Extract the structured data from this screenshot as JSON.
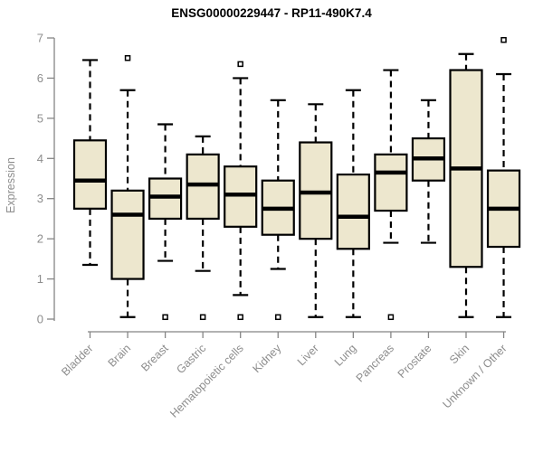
{
  "chart_data": {
    "type": "boxplot",
    "title": "ENSG00000229447 - RP11-490K7.4",
    "ylabel": "Expression",
    "xlabel": "",
    "ylim": [
      0,
      7
    ],
    "yticks": [
      0,
      1,
      2,
      3,
      4,
      5,
      6,
      7
    ],
    "grid": false,
    "legend": "none",
    "colors": {
      "box_fill": "#EDE7CE",
      "box_stroke": "#000000",
      "median": "#000000",
      "whisker": "#000000",
      "axis": "#858585",
      "tick_text": "#8D8D8D",
      "title_text": "#000000",
      "background": "#FFFFFF"
    },
    "categories": [
      "Bladder",
      "Brain",
      "Breast",
      "Gastric",
      "Hematopoietic cells",
      "Kidney",
      "Liver",
      "Lung",
      "Pancreas",
      "Prostate",
      "Skin",
      "Unknown / Other"
    ],
    "series": [
      {
        "category": "Bladder",
        "whisker_low": 1.35,
        "q1": 2.75,
        "median": 3.45,
        "q3": 4.45,
        "whisker_high": 6.45,
        "outliers": []
      },
      {
        "category": "Brain",
        "whisker_low": 0.05,
        "q1": 1.0,
        "median": 2.6,
        "q3": 3.2,
        "whisker_high": 5.7,
        "outliers": [
          6.5
        ]
      },
      {
        "category": "Breast",
        "whisker_low": 1.45,
        "q1": 2.5,
        "median": 3.05,
        "q3": 3.5,
        "whisker_high": 4.85,
        "outliers": [
          0.05
        ]
      },
      {
        "category": "Gastric",
        "whisker_low": 1.2,
        "q1": 2.5,
        "median": 3.35,
        "q3": 4.1,
        "whisker_high": 4.55,
        "outliers": [
          0.05
        ]
      },
      {
        "category": "Hematopoietic cells",
        "whisker_low": 0.6,
        "q1": 2.3,
        "median": 3.1,
        "q3": 3.8,
        "whisker_high": 6.0,
        "outliers": [
          6.35,
          0.05
        ]
      },
      {
        "category": "Kidney",
        "whisker_low": 1.25,
        "q1": 2.1,
        "median": 2.75,
        "q3": 3.45,
        "whisker_high": 5.45,
        "outliers": [
          0.05
        ]
      },
      {
        "category": "Liver",
        "whisker_low": 0.05,
        "q1": 2.0,
        "median": 3.15,
        "q3": 4.4,
        "whisker_high": 5.35,
        "outliers": []
      },
      {
        "category": "Lung",
        "whisker_low": 0.05,
        "q1": 1.75,
        "median": 2.55,
        "q3": 3.6,
        "whisker_high": 5.7,
        "outliers": []
      },
      {
        "category": "Pancreas",
        "whisker_low": 1.9,
        "q1": 2.7,
        "median": 3.65,
        "q3": 4.1,
        "whisker_high": 6.2,
        "outliers": [
          0.05
        ]
      },
      {
        "category": "Prostate",
        "whisker_low": 1.9,
        "q1": 3.45,
        "median": 4.0,
        "q3": 4.5,
        "whisker_high": 5.45,
        "outliers": []
      },
      {
        "category": "Skin",
        "whisker_low": 0.05,
        "q1": 1.3,
        "median": 3.75,
        "q3": 6.2,
        "whisker_high": 6.6,
        "outliers": []
      },
      {
        "category": "Unknown / Other",
        "whisker_low": 0.05,
        "q1": 1.8,
        "median": 2.75,
        "q3": 3.7,
        "whisker_high": 6.1,
        "outliers": [
          6.95
        ]
      }
    ]
  }
}
